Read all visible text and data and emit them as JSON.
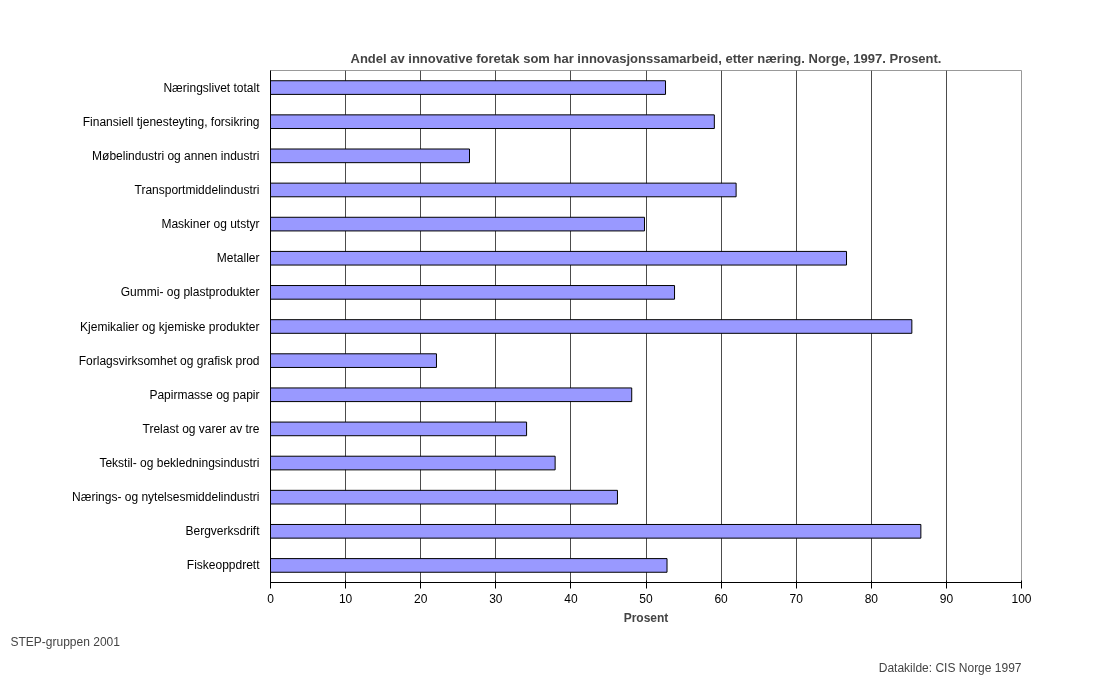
{
  "chart_data": {
    "type": "bar",
    "orientation": "horizontal",
    "title": "Andel av innovative foretak som har innovasjonssamarbeid, etter næring. Norge, 1997. Prosent.",
    "xlabel": "Prosent",
    "categories": [
      "Næringslivet totalt",
      "Finansiell tjenesteyting, forsikring",
      "Møbelindustri og annen industri",
      "Transportmiddelindustri",
      "Maskiner og utstyr",
      "Metaller",
      "Gummi- og plastprodukter",
      "Kjemikalier og kjemiske produkter",
      "Forlagsvirksomhet og grafisk prod",
      "Papirmasse og papir",
      "Trelast og varer av tre",
      "Tekstil- og bekledningsindustri",
      "Nærings- og nytelsesmiddelindustri",
      "Bergverksdrift",
      "Fiskeoppdrett"
    ],
    "values": [
      52.6,
      59.1,
      26.5,
      62.0,
      49.8,
      76.7,
      53.8,
      85.4,
      22.1,
      48.1,
      34.1,
      37.9,
      46.2,
      86.6,
      52.8
    ],
    "color": "#9999ff",
    "xlim": [
      0,
      100
    ],
    "xticks": [
      0,
      10,
      20,
      30,
      40,
      50,
      60,
      70,
      80,
      90,
      100
    ],
    "grid": "x",
    "annotations": [
      "STEP-gruppen 2001",
      "Datakilde: CIS Norge 1997"
    ]
  }
}
